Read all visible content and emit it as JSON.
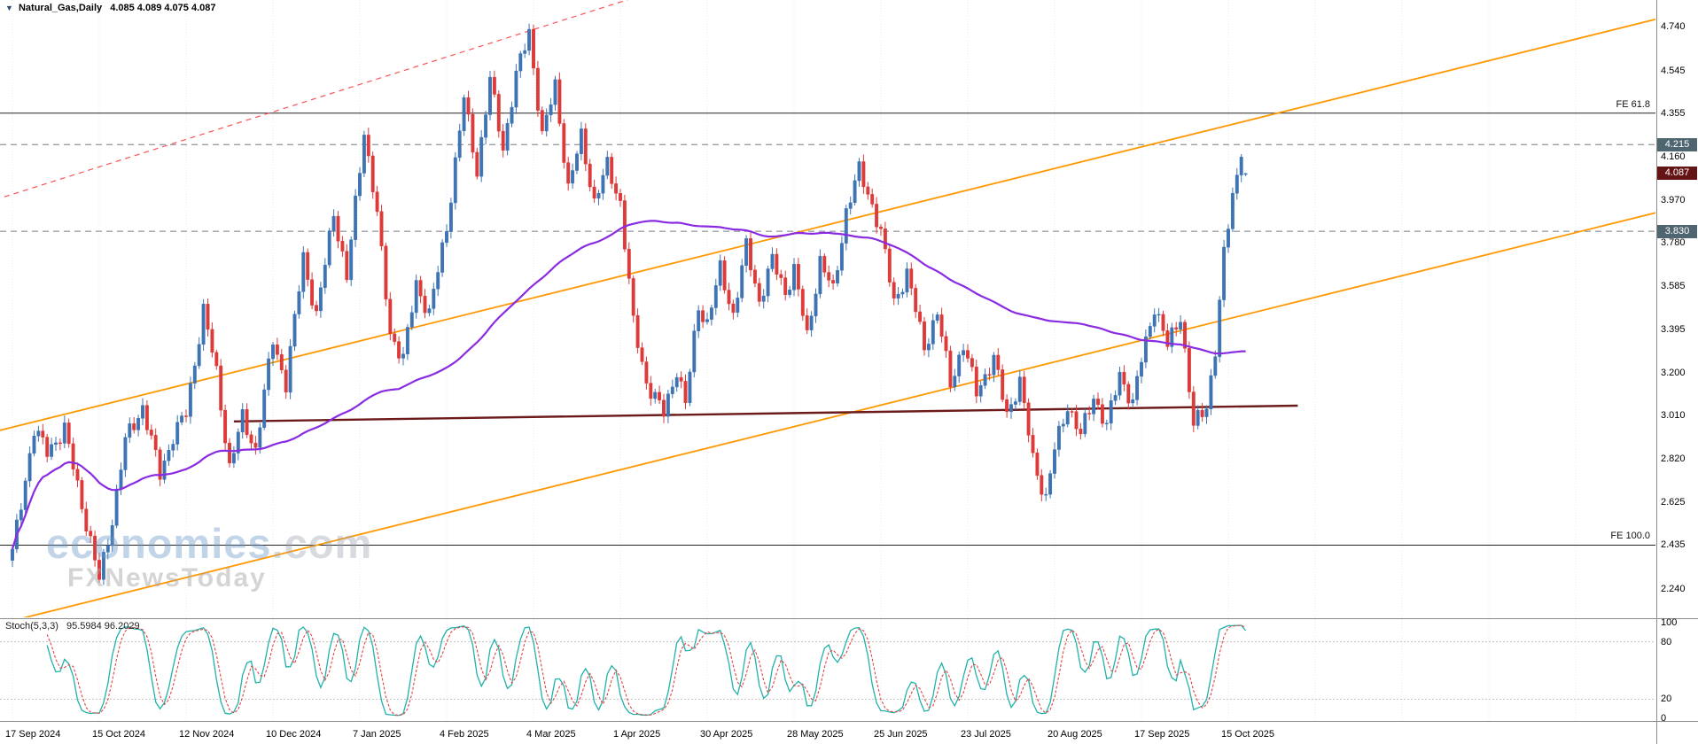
{
  "quote": {
    "arrow": "▼",
    "symbol": "Natural_Gas,Daily",
    "ohlc": "4.085 4.089 4.075 4.087"
  },
  "watermark": {
    "brand": "economies",
    "brand_suffix": ".com",
    "subtitle": "FXNewsToday"
  },
  "indicator": {
    "label": "Stoch(5,3,3)",
    "values": "95.5984 96.2029",
    "scale_labels": [
      "100",
      "80",
      "20",
      "0"
    ],
    "scale_values": [
      100,
      80,
      20,
      0
    ],
    "levels": [
      80,
      20
    ]
  },
  "fib": {
    "fe618_label": "FE 61.8",
    "fe618_price": 4.355,
    "fe100_label": "FE 100.0",
    "fe100_price": 2.435
  },
  "price_axis": {
    "labels": [
      "4.740",
      "4.545",
      "4.355",
      "4.160",
      "3.970",
      "3.780",
      "3.585",
      "3.395",
      "3.200",
      "3.010",
      "2.820",
      "2.625",
      "2.435",
      "2.240"
    ],
    "values": [
      4.74,
      4.545,
      4.355,
      4.16,
      3.97,
      3.78,
      3.585,
      3.395,
      3.2,
      3.01,
      2.82,
      2.625,
      2.435,
      2.24
    ],
    "boxed_levels": [
      {
        "label": "4.215",
        "value": 4.215
      },
      {
        "label": "3.830",
        "value": 3.83
      }
    ],
    "current_price_label": "4.087",
    "current_price": 4.087
  },
  "time_axis": {
    "labels": [
      "17 Sep 2024",
      "15 Oct 2024",
      "12 Nov 2024",
      "10 Dec 2024",
      "7 Jan 2025",
      "4 Feb 2025",
      "4 Mar 2025",
      "1 Apr 2025",
      "30 Apr 2025",
      "28 May 2025",
      "25 Jun 2025",
      "23 Jul 2025",
      "20 Aug 2025",
      "17 Sep 2025",
      "15 Oct 2025"
    ],
    "days_per_label": 20
  },
  "chart_data": {
    "type": "candlestick",
    "symbol": "Natural_Gas",
    "timeframe": "Daily",
    "title": "Natural_Gas, Daily with Stochastic(5,3,3)",
    "ylim": [
      2.16,
      4.8
    ],
    "total_days": 285,
    "ohlc_current": {
      "open": 4.085,
      "high": 4.089,
      "low": 4.075,
      "close": 4.087
    },
    "waypoints": [
      [
        0,
        2.4
      ],
      [
        2,
        2.62
      ],
      [
        5,
        2.95
      ],
      [
        8,
        2.85
      ],
      [
        12,
        2.95
      ],
      [
        15,
        2.7
      ],
      [
        18,
        2.45
      ],
      [
        20,
        2.28
      ],
      [
        23,
        2.55
      ],
      [
        26,
        2.9
      ],
      [
        30,
        3.05
      ],
      [
        34,
        2.75
      ],
      [
        37,
        2.92
      ],
      [
        40,
        3.02
      ],
      [
        44,
        3.48
      ],
      [
        47,
        3.2
      ],
      [
        50,
        2.78
      ],
      [
        53,
        3.0
      ],
      [
        56,
        2.86
      ],
      [
        60,
        3.35
      ],
      [
        63,
        3.15
      ],
      [
        67,
        3.72
      ],
      [
        70,
        3.45
      ],
      [
        74,
        3.92
      ],
      [
        77,
        3.62
      ],
      [
        81,
        4.28
      ],
      [
        84,
        3.9
      ],
      [
        87,
        3.38
      ],
      [
        90,
        3.26
      ],
      [
        93,
        3.6
      ],
      [
        96,
        3.46
      ],
      [
        100,
        3.85
      ],
      [
        104,
        4.42
      ],
      [
        107,
        4.1
      ],
      [
        110,
        4.5
      ],
      [
        113,
        4.2
      ],
      [
        116,
        4.52
      ],
      [
        119,
        4.72
      ],
      [
        122,
        4.25
      ],
      [
        125,
        4.48
      ],
      [
        128,
        4.02
      ],
      [
        131,
        4.25
      ],
      [
        134,
        3.96
      ],
      [
        137,
        4.12
      ],
      [
        140,
        3.96
      ],
      [
        143,
        3.42
      ],
      [
        146,
        3.16
      ],
      [
        150,
        3.02
      ],
      [
        153,
        3.22
      ],
      [
        155,
        3.06
      ],
      [
        158,
        3.5
      ],
      [
        160,
        3.42
      ],
      [
        163,
        3.66
      ],
      [
        166,
        3.46
      ],
      [
        169,
        3.76
      ],
      [
        172,
        3.52
      ],
      [
        175,
        3.7
      ],
      [
        178,
        3.56
      ],
      [
        180,
        3.66
      ],
      [
        183,
        3.36
      ],
      [
        186,
        3.7
      ],
      [
        189,
        3.56
      ],
      [
        192,
        3.92
      ],
      [
        195,
        4.1
      ],
      [
        198,
        3.95
      ],
      [
        200,
        3.82
      ],
      [
        203,
        3.52
      ],
      [
        206,
        3.64
      ],
      [
        210,
        3.32
      ],
      [
        213,
        3.46
      ],
      [
        216,
        3.16
      ],
      [
        219,
        3.32
      ],
      [
        222,
        3.12
      ],
      [
        226,
        3.26
      ],
      [
        229,
        3.02
      ],
      [
        232,
        3.16
      ],
      [
        235,
        2.82
      ],
      [
        238,
        2.64
      ],
      [
        240,
        2.86
      ],
      [
        243,
        3.06
      ],
      [
        246,
        2.92
      ],
      [
        249,
        3.1
      ],
      [
        252,
        2.96
      ],
      [
        255,
        3.2
      ],
      [
        258,
        3.06
      ],
      [
        260,
        3.26
      ],
      [
        263,
        3.5
      ],
      [
        266,
        3.32
      ],
      [
        269,
        3.46
      ],
      [
        272,
        2.96
      ],
      [
        275,
        3.06
      ],
      [
        277,
        3.3
      ],
      [
        279,
        3.72
      ],
      [
        281,
        4.0
      ],
      [
        283,
        4.16
      ],
      [
        284,
        4.087
      ]
    ],
    "levels": {
      "dashed_gray": [
        4.215,
        3.83
      ],
      "fe_618": 4.355,
      "fe_100": 2.435
    },
    "trendlines": [
      {
        "name": "channel-upper",
        "style": "solid",
        "width": 1.8,
        "colorKey": "channel",
        "d1": -4,
        "p1": 2.94,
        "d2": 380,
        "p2": 4.78
      },
      {
        "name": "channel-lower",
        "style": "solid",
        "width": 1.8,
        "colorKey": "channel",
        "d1": -4,
        "p1": 2.08,
        "d2": 380,
        "p2": 3.92
      },
      {
        "name": "steep-resistance",
        "style": "dashed",
        "width": 1.2,
        "colorKey": "trend_dashed",
        "d1": -4,
        "p1": 3.97,
        "d2": 150,
        "p2": 4.91
      },
      {
        "name": "horizontal-support",
        "style": "solid",
        "width": 2.4,
        "colorKey": "support",
        "d1": 51,
        "p1": 2.985,
        "d2": 296,
        "p2": 3.055
      }
    ],
    "moving_average": {
      "period": 90,
      "colorKey": "ma"
    },
    "stochastic": {
      "k": 5,
      "d": 3,
      "slowing": 3,
      "last_k": 95.5984,
      "last_d": 96.2029
    }
  },
  "colors": {
    "up": "#3e74b4",
    "down": "#dd3a3a",
    "ma": "#8a2be2",
    "channel": "#ff9800",
    "trend_dashed": "#ff5252",
    "support": "#6d1a1a",
    "level_dashed": "#9aa0a6",
    "fe_line": "#222222",
    "box_level_bg": "#4f6570",
    "box_price_bg": "#641414",
    "stoch_k": "#20b2aa",
    "stoch_d": "#e04545",
    "grid": "#e9e9e9",
    "separator": "#8c8c8c"
  }
}
